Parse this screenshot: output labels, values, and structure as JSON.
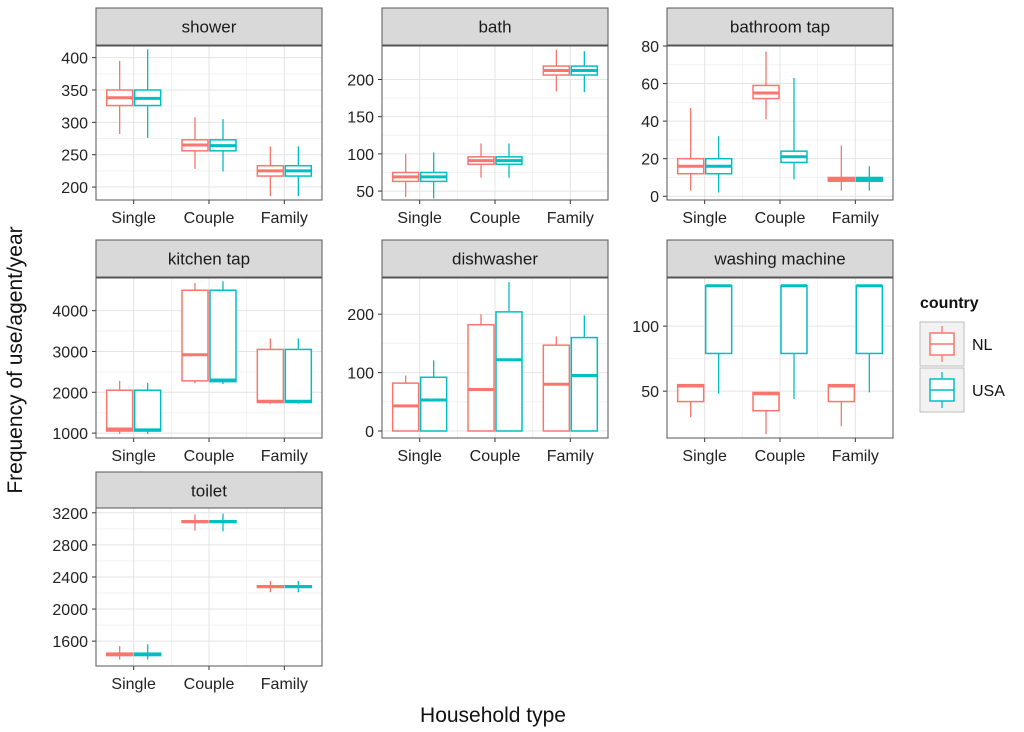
{
  "chart_data": {
    "type": "boxplot",
    "xlabel": "Household type",
    "ylabel": "Frequency of use/agent/year",
    "categories": [
      "Single",
      "Couple",
      "Family"
    ],
    "legend": {
      "title": "country",
      "entries": [
        {
          "name": "NL",
          "color": "#F8766D"
        },
        {
          "name": "USA",
          "color": "#00BFC4"
        }
      ]
    },
    "panels": [
      {
        "title": "shower",
        "ylim": [
          180,
          418
        ],
        "yticks": [
          200,
          250,
          300,
          350,
          400
        ],
        "boxes": [
          {
            "country": "NL",
            "category": "Single",
            "q1": 326,
            "median": 338,
            "q3": 350,
            "lo": 282,
            "hi": 395
          },
          {
            "country": "USA",
            "category": "Single",
            "q1": 326,
            "median": 337,
            "q3": 350,
            "lo": 276,
            "hi": 413
          },
          {
            "country": "NL",
            "category": "Couple",
            "q1": 256,
            "median": 265,
            "q3": 273,
            "lo": 228,
            "hi": 308
          },
          {
            "country": "USA",
            "category": "Couple",
            "q1": 256,
            "median": 264,
            "q3": 273,
            "lo": 224,
            "hi": 305
          },
          {
            "country": "NL",
            "category": "Family",
            "q1": 217,
            "median": 225,
            "q3": 233,
            "lo": 186,
            "hi": 263
          },
          {
            "country": "USA",
            "category": "Family",
            "q1": 217,
            "median": 225,
            "q3": 233,
            "lo": 186,
            "hi": 263
          }
        ]
      },
      {
        "title": "bath",
        "ylim": [
          38,
          245
        ],
        "yticks": [
          50,
          100,
          150,
          200
        ],
        "boxes": [
          {
            "country": "NL",
            "category": "Single",
            "q1": 63,
            "median": 69,
            "q3": 75,
            "lo": 42,
            "hi": 100
          },
          {
            "country": "USA",
            "category": "Single",
            "q1": 63,
            "median": 69,
            "q3": 75,
            "lo": 40,
            "hi": 102
          },
          {
            "country": "NL",
            "category": "Couple",
            "q1": 86,
            "median": 91,
            "q3": 96,
            "lo": 68,
            "hi": 114
          },
          {
            "country": "USA",
            "category": "Couple",
            "q1": 86,
            "median": 91,
            "q3": 96,
            "lo": 68,
            "hi": 114
          },
          {
            "country": "NL",
            "category": "Family",
            "q1": 206,
            "median": 212,
            "q3": 218,
            "lo": 184,
            "hi": 240
          },
          {
            "country": "USA",
            "category": "Family",
            "q1": 206,
            "median": 212,
            "q3": 218,
            "lo": 183,
            "hi": 238
          }
        ]
      },
      {
        "title": "bathroom tap",
        "ylim": [
          -2,
          80
        ],
        "yticks": [
          0,
          20,
          40,
          60,
          80
        ],
        "boxes": [
          {
            "country": "NL",
            "category": "Single",
            "q1": 12,
            "median": 16,
            "q3": 20,
            "lo": 3,
            "hi": 47
          },
          {
            "country": "USA",
            "category": "Single",
            "q1": 12,
            "median": 16,
            "q3": 20,
            "lo": 2,
            "hi": 32
          },
          {
            "country": "NL",
            "category": "Couple",
            "q1": 52,
            "median": 55,
            "q3": 59,
            "lo": 41,
            "hi": 77
          },
          {
            "country": "USA",
            "category": "Couple",
            "q1": 18,
            "median": 21,
            "q3": 24,
            "lo": 9,
            "hi": 63
          },
          {
            "country": "NL",
            "category": "Family",
            "q1": 8,
            "median": 9,
            "q3": 10,
            "lo": 3,
            "hi": 27
          },
          {
            "country": "USA",
            "category": "Family",
            "q1": 8,
            "median": 9,
            "q3": 10,
            "lo": 3,
            "hi": 16
          }
        ]
      },
      {
        "title": "kitchen tap",
        "ylim": [
          880,
          4800
        ],
        "yticks": [
          1000,
          2000,
          3000,
          4000
        ],
        "boxes": [
          {
            "country": "NL",
            "category": "Single",
            "q1": 1050,
            "median": 1100,
            "q3": 2050,
            "lo": 980,
            "hi": 2280
          },
          {
            "country": "USA",
            "category": "Single",
            "q1": 1050,
            "median": 1080,
            "q3": 2050,
            "lo": 980,
            "hi": 2230
          },
          {
            "country": "NL",
            "category": "Couple",
            "q1": 2280,
            "median": 2920,
            "q3": 4500,
            "lo": 2220,
            "hi": 4680
          },
          {
            "country": "USA",
            "category": "Couple",
            "q1": 2260,
            "median": 2300,
            "q3": 4500,
            "lo": 2200,
            "hi": 4720
          },
          {
            "country": "NL",
            "category": "Family",
            "q1": 1750,
            "median": 1780,
            "q3": 3050,
            "lo": 1720,
            "hi": 3320
          },
          {
            "country": "USA",
            "category": "Family",
            "q1": 1750,
            "median": 1780,
            "q3": 3050,
            "lo": 1720,
            "hi": 3320
          }
        ]
      },
      {
        "title": "dishwasher",
        "ylim": [
          -12,
          262
        ],
        "yticks": [
          0,
          100,
          200
        ],
        "boxes": [
          {
            "country": "NL",
            "category": "Single",
            "q1": 0,
            "median": 43,
            "q3": 82,
            "lo": 0,
            "hi": 95
          },
          {
            "country": "USA",
            "category": "Single",
            "q1": 0,
            "median": 53,
            "q3": 92,
            "lo": 0,
            "hi": 121
          },
          {
            "country": "NL",
            "category": "Couple",
            "q1": 0,
            "median": 71,
            "q3": 182,
            "lo": 0,
            "hi": 200
          },
          {
            "country": "USA",
            "category": "Couple",
            "q1": 0,
            "median": 122,
            "q3": 204,
            "lo": 0,
            "hi": 255
          },
          {
            "country": "NL",
            "category": "Family",
            "q1": 0,
            "median": 80,
            "q3": 147,
            "lo": 0,
            "hi": 162
          },
          {
            "country": "USA",
            "category": "Family",
            "q1": 0,
            "median": 95,
            "q3": 160,
            "lo": 0,
            "hi": 198
          }
        ]
      },
      {
        "title": "washing machine",
        "ylim": [
          14,
          137
        ],
        "yticks": [
          50,
          100
        ],
        "boxes": [
          {
            "country": "NL",
            "category": "Single",
            "q1": 42,
            "median": 54,
            "q3": 55,
            "lo": 30,
            "hi": 55
          },
          {
            "country": "USA",
            "category": "Single",
            "q1": 79,
            "median": 131,
            "q3": 131,
            "lo": 48,
            "hi": 131
          },
          {
            "country": "NL",
            "category": "Couple",
            "q1": 35,
            "median": 48,
            "q3": 49,
            "lo": 17,
            "hi": 49
          },
          {
            "country": "USA",
            "category": "Couple",
            "q1": 79,
            "median": 131,
            "q3": 131,
            "lo": 44,
            "hi": 131
          },
          {
            "country": "NL",
            "category": "Family",
            "q1": 42,
            "median": 54,
            "q3": 55,
            "lo": 23,
            "hi": 55
          },
          {
            "country": "USA",
            "category": "Family",
            "q1": 79,
            "median": 131,
            "q3": 131,
            "lo": 49,
            "hi": 131
          }
        ]
      },
      {
        "title": "toilet",
        "ylim": [
          1290,
          3260
        ],
        "yticks": [
          1600,
          2000,
          2400,
          2800,
          3200
        ],
        "boxes": [
          {
            "country": "NL",
            "category": "Single",
            "q1": 1420,
            "median": 1435,
            "q3": 1450,
            "lo": 1370,
            "hi": 1540
          },
          {
            "country": "USA",
            "category": "Single",
            "q1": 1420,
            "median": 1435,
            "q3": 1450,
            "lo": 1370,
            "hi": 1560
          },
          {
            "country": "NL",
            "category": "Couple",
            "q1": 3080,
            "median": 3090,
            "q3": 3100,
            "lo": 2980,
            "hi": 3180
          },
          {
            "country": "USA",
            "category": "Couple",
            "q1": 3080,
            "median": 3090,
            "q3": 3100,
            "lo": 2970,
            "hi": 3190
          },
          {
            "country": "NL",
            "category": "Family",
            "q1": 2270,
            "median": 2280,
            "q3": 2290,
            "lo": 2210,
            "hi": 2350
          },
          {
            "country": "USA",
            "category": "Family",
            "q1": 2270,
            "median": 2280,
            "q3": 2290,
            "lo": 2210,
            "hi": 2350
          }
        ]
      }
    ]
  }
}
